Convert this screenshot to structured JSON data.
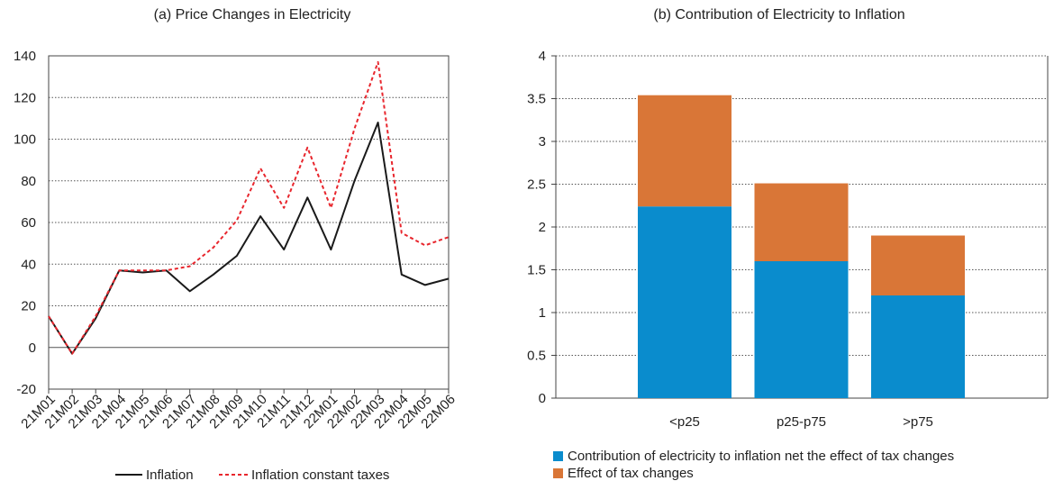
{
  "chart_data": [
    {
      "type": "line",
      "title": "(a) Price Changes in Electricity",
      "xlabel": "",
      "ylabel": "",
      "x": [
        "21M01",
        "21M02",
        "21M03",
        "21M04",
        "21M05",
        "21M06",
        "21M07",
        "21M08",
        "21M09",
        "21M10",
        "21M11",
        "21M12",
        "22M01",
        "22M02",
        "22M03",
        "22M04",
        "22M05",
        "22M06"
      ],
      "ylim": [
        -20,
        140
      ],
      "yticks": [
        140,
        120,
        100,
        80,
        60,
        40,
        20,
        0,
        -20
      ],
      "grid": true,
      "legend_position": "bottom",
      "series": [
        {
          "name": "Inflation",
          "color": "#1a1a1a",
          "style": "solid",
          "values": [
            15,
            -3,
            14,
            37,
            36,
            37,
            27,
            35,
            44,
            63,
            47,
            72,
            47,
            80,
            108,
            35,
            30,
            33
          ]
        },
        {
          "name": "Inflation constant taxes",
          "color": "#e8262d",
          "style": "dashed",
          "values": [
            15,
            -3,
            15,
            37,
            37,
            37,
            39,
            48,
            61,
            86,
            67,
            96,
            67,
            105,
            137,
            55,
            49,
            53
          ]
        }
      ]
    },
    {
      "type": "bar",
      "stacked": true,
      "title": "(b) Contribution of Electricity to Inflation",
      "xlabel": "",
      "ylabel": "",
      "categories": [
        "<p25",
        "p25-p75",
        ">p75"
      ],
      "ylim": [
        0,
        4
      ],
      "yticks": [
        "4",
        "3.5",
        "3",
        "2.5",
        "2",
        "1.5",
        "1",
        "0.5",
        "0"
      ],
      "grid": true,
      "legend_position": "bottom-left",
      "series": [
        {
          "name": "Contribution of electricity to inflation net the effect of tax changes",
          "color": "#0a8ccd",
          "values": [
            2.24,
            1.6,
            1.2
          ]
        },
        {
          "name": "Effect of tax changes",
          "color": "#d97637",
          "values": [
            1.3,
            0.91,
            0.7
          ]
        }
      ]
    }
  ]
}
